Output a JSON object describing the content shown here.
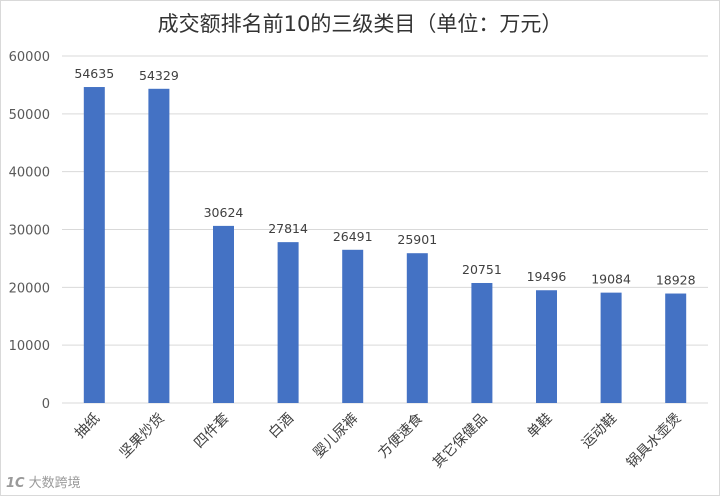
{
  "chart_data": {
    "type": "bar",
    "title": "成交额排名前10的三级类目（单位：万元）",
    "xlabel": "",
    "ylabel": "",
    "categories": [
      "抽纸",
      "坚果炒货",
      "四件套",
      "白酒",
      "婴儿尿裤",
      "方便速食",
      "其它保健品",
      "单鞋",
      "运动鞋",
      "锅具水壶煲"
    ],
    "values": [
      54635,
      54329,
      30624,
      27814,
      26491,
      25901,
      20751,
      19496,
      19084,
      18928
    ],
    "ylim": [
      0,
      60000
    ],
    "yticks": [
      0,
      10000,
      20000,
      30000,
      40000,
      50000,
      60000
    ],
    "grid": true,
    "legend": "none",
    "bar_color": "#4472c4",
    "grid_color": "#d9d9d9"
  },
  "watermark": {
    "logo": "1C",
    "text": "大数跨境"
  }
}
